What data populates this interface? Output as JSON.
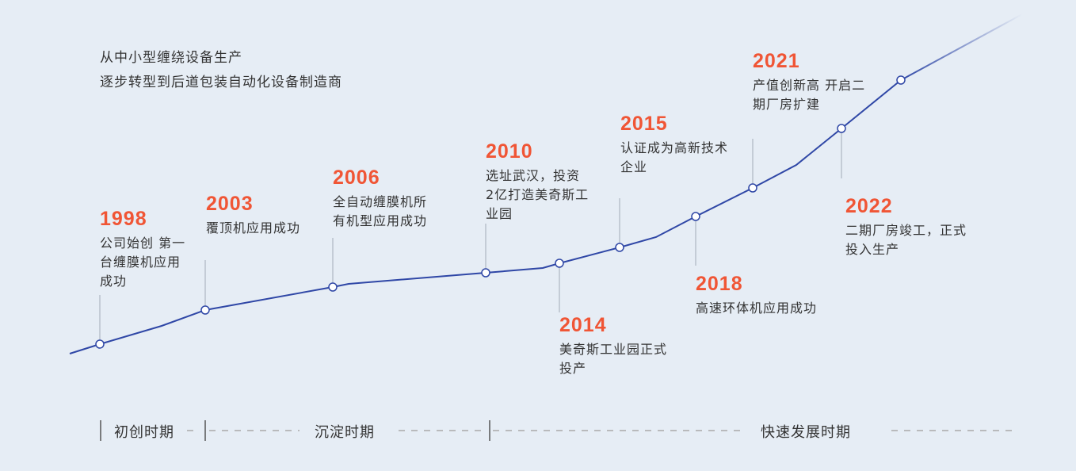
{
  "intro": {
    "line1": "从中小型缠绕设备生产",
    "line2": "逐步转型到后道包装自动化设备制造商"
  },
  "colors": {
    "line": "#2f47a6",
    "year": "#f05535",
    "pin": "#b8c0cc",
    "background": "#e6edf5"
  },
  "events": [
    {
      "year": "1998",
      "desc": "公司始创 第一\n台缠膜机应用\n成功"
    },
    {
      "year": "2003",
      "desc": "覆顶机应用成功"
    },
    {
      "year": "2006",
      "desc": "全自动缠膜机所\n有机型应用成功"
    },
    {
      "year": "2010",
      "desc": "选址武汉，投资\n2亿打造美奇斯工\n业园"
    },
    {
      "year": "2014",
      "desc": "美奇斯工业园正式\n投产"
    },
    {
      "year": "2015",
      "desc": "认证成为高新技术\n企业"
    },
    {
      "year": "2018",
      "desc": "高速环体机应用成功"
    },
    {
      "year": "2021",
      "desc": "产值创新高 开启二\n期厂房扩建"
    },
    {
      "year": "2022",
      "desc": "二期厂房竣工，正式\n投入生产"
    }
  ],
  "periods": [
    "初创时期",
    "沉淀时期",
    "快速发展时期"
  ]
}
